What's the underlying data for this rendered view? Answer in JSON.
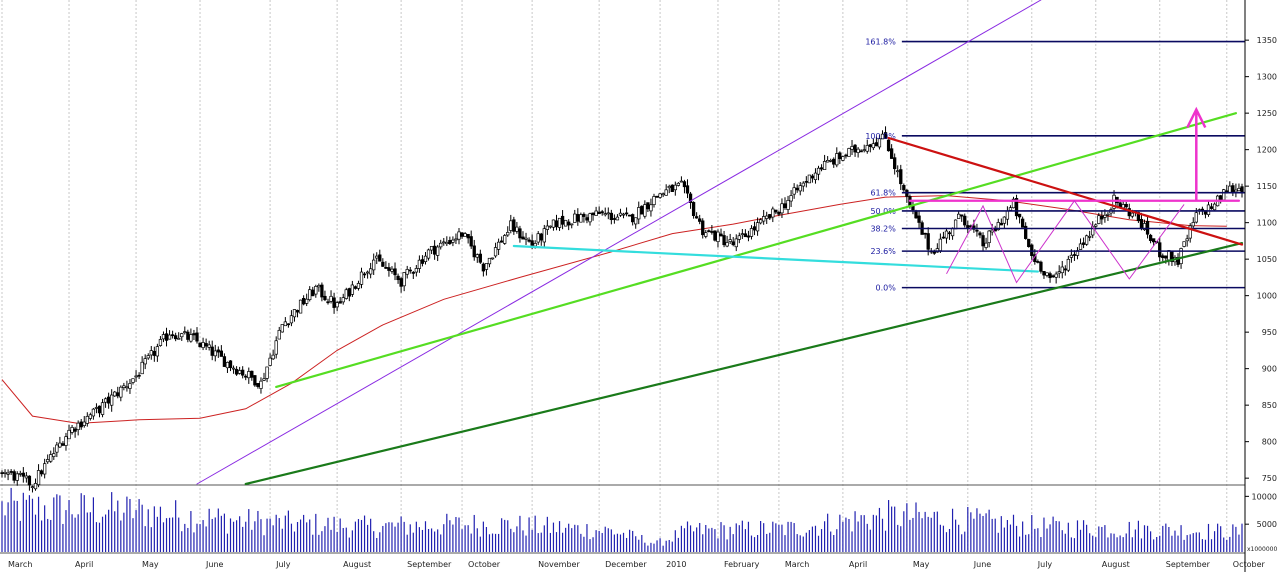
{
  "chart_data": {
    "type": "candlestick",
    "grid": true,
    "legend": "none",
    "price_axis": {
      "ylim": [
        742,
        1405
      ],
      "ticks": [
        750,
        800,
        850,
        900,
        950,
        1000,
        1050,
        1100,
        1150,
        1200,
        1250,
        1300,
        1350
      ]
    },
    "volume_axis": {
      "ylim": [
        0,
        11500
      ],
      "ticks": [
        5000,
        10000
      ],
      "unit_label": "x1000000"
    },
    "months": [
      "March",
      "April",
      "May",
      "June",
      "July",
      "August",
      "September",
      "October",
      "November",
      "December",
      "2010",
      "February",
      "March",
      "April",
      "May",
      "June",
      "July",
      "August",
      "September",
      "October"
    ],
    "month_days": [
      0,
      22,
      44,
      65,
      88,
      110,
      131,
      151,
      174,
      196,
      216,
      235,
      255,
      276,
      297,
      317,
      338,
      359,
      380,
      402
    ],
    "total_days": 407,
    "price_path": [
      [
        0,
        760
      ],
      [
        10,
        742
      ],
      [
        22,
        815
      ],
      [
        32,
        845
      ],
      [
        44,
        890
      ],
      [
        55,
        950
      ],
      [
        63,
        940
      ],
      [
        75,
        905
      ],
      [
        85,
        880
      ],
      [
        92,
        960
      ],
      [
        103,
        1010
      ],
      [
        110,
        985
      ],
      [
        122,
        1050
      ],
      [
        131,
        1020
      ],
      [
        140,
        1060
      ],
      [
        151,
        1085
      ],
      [
        158,
        1040
      ],
      [
        167,
        1095
      ],
      [
        174,
        1070
      ],
      [
        182,
        1100
      ],
      [
        196,
        1112
      ],
      [
        206,
        1105
      ],
      [
        216,
        1140
      ],
      [
        223,
        1150
      ],
      [
        230,
        1090
      ],
      [
        240,
        1070
      ],
      [
        255,
        1118
      ],
      [
        268,
        1175
      ],
      [
        285,
        1210
      ],
      [
        290,
        1216
      ],
      [
        297,
        1130
      ],
      [
        305,
        1060
      ],
      [
        315,
        1110
      ],
      [
        322,
        1070
      ],
      [
        332,
        1125
      ],
      [
        338,
        1055
      ],
      [
        345,
        1020
      ],
      [
        352,
        1060
      ],
      [
        365,
        1130
      ],
      [
        372,
        1110
      ],
      [
        380,
        1060
      ],
      [
        386,
        1048
      ],
      [
        392,
        1110
      ],
      [
        398,
        1125
      ],
      [
        402,
        1145
      ],
      [
        407,
        1148
      ]
    ],
    "ma_path": [
      [
        0,
        885
      ],
      [
        10,
        835
      ],
      [
        25,
        825
      ],
      [
        45,
        830
      ],
      [
        65,
        832
      ],
      [
        80,
        845
      ],
      [
        95,
        880
      ],
      [
        110,
        925
      ],
      [
        125,
        960
      ],
      [
        145,
        995
      ],
      [
        170,
        1025
      ],
      [
        200,
        1060
      ],
      [
        220,
        1085
      ],
      [
        240,
        1098
      ],
      [
        255,
        1110
      ],
      [
        275,
        1125
      ],
      [
        290,
        1135
      ],
      [
        310,
        1137
      ],
      [
        330,
        1130
      ],
      [
        350,
        1118
      ],
      [
        370,
        1104
      ],
      [
        390,
        1096
      ],
      [
        402,
        1095
      ]
    ],
    "volume_profile": [
      [
        0,
        8000
      ],
      [
        40,
        7500
      ],
      [
        80,
        5500
      ],
      [
        120,
        4500
      ],
      [
        160,
        5000
      ],
      [
        200,
        3800
      ],
      [
        215,
        1500
      ],
      [
        225,
        3800
      ],
      [
        260,
        4200
      ],
      [
        290,
        6500
      ],
      [
        310,
        6000
      ],
      [
        340,
        4500
      ],
      [
        380,
        4000
      ],
      [
        402,
        3600
      ]
    ],
    "fibonacci": {
      "levels": [
        {
          "label": "0.0%",
          "value": 1011
        },
        {
          "label": "23.6%",
          "value": 1061
        },
        {
          "label": "38.2%",
          "value": 1092
        },
        {
          "label": "50.0%",
          "value": 1116
        },
        {
          "label": "61.8%",
          "value": 1141
        },
        {
          "label": "100.0%",
          "value": 1219
        },
        {
          "label": "161.8%",
          "value": 1348
        }
      ],
      "color": "#0a0a60",
      "label_color": "#1a1aa0"
    },
    "trendlines": [
      {
        "name": "channel",
        "color": "#8a2be2",
        "from": [
          64,
          742
        ],
        "to": [
          341,
          1405
        ]
      },
      {
        "name": "support-light",
        "color": "#55dd22",
        "from": [
          90,
          875
        ],
        "to": [
          405,
          1250
        ]
      },
      {
        "name": "support-dark",
        "color": "#1a7a1a",
        "from": [
          80,
          742
        ],
        "to": [
          407,
          1072
        ]
      },
      {
        "name": "cyan-line",
        "color": "#33dddd",
        "from": [
          168,
          1068
        ],
        "to": [
          340,
          1033
        ]
      },
      {
        "name": "red-line",
        "color": "#cc1111",
        "from": [
          291,
          1216
        ],
        "to": [
          407,
          1070
        ]
      },
      {
        "name": "neckline",
        "color": "#ee33cc",
        "from": [
          298,
          1130
        ],
        "to": [
          406,
          1130
        ]
      }
    ],
    "pattern_lines": {
      "color": "#cc33cc",
      "points": [
        [
          310,
          1030
        ],
        [
          322,
          1123
        ],
        [
          333,
          1018
        ],
        [
          352,
          1130
        ],
        [
          370,
          1023
        ],
        [
          388,
          1125
        ]
      ]
    },
    "target_arrow": {
      "color": "#ee33cc",
      "day": 392,
      "from": 1130,
      "to": 1255
    }
  }
}
